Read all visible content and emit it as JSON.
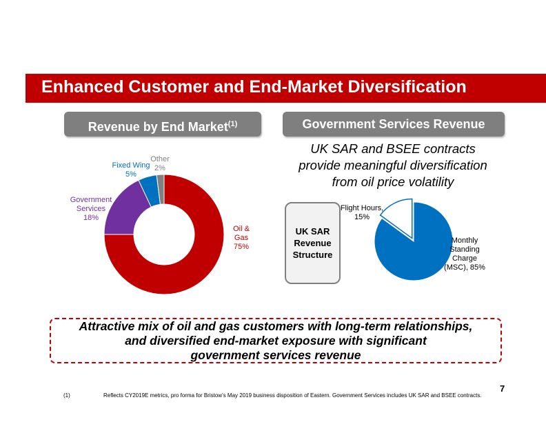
{
  "title": "Enhanced Customer and End-Market Diversification",
  "left_header": {
    "text": "Revenue by End Market",
    "sup": "(1)"
  },
  "right_header": "Government Services Revenue",
  "subtitle": [
    "UK SAR and BSEE contracts",
    "provide meaningful diversification",
    "from oil price volatility"
  ],
  "sar_box": [
    "UK SAR",
    "Revenue",
    "Structure"
  ],
  "callout": [
    "Attractive mix of oil and gas customers with long-term relationships,",
    "and diversified end-market exposure with significant",
    "government services revenue"
  ],
  "page_number": "7",
  "footnote": {
    "number": "(1)",
    "text": "Reflects CY2019E metrics, pro forma for Bristow’s May 2019 business disposition of Eastern. Government Services includes UK SAR and BSEE contracts."
  },
  "chart_data": [
    {
      "type": "pie",
      "variant": "donut",
      "title": "Revenue by End Market",
      "slices": [
        {
          "name": "Oil & Gas",
          "value": 75,
          "label": [
            "Oil &",
            "Gas",
            "75%"
          ],
          "color": "#c00000"
        },
        {
          "name": "Government Services",
          "value": 18,
          "label": [
            "Government",
            "Services",
            "18%"
          ],
          "color": "#7030a0"
        },
        {
          "name": "Fixed Wing",
          "value": 5,
          "label": [
            "Fixed Wing",
            "5%"
          ],
          "color": "#0070c0"
        },
        {
          "name": "Other",
          "value": 2,
          "label": [
            "Other",
            "2%"
          ],
          "color": "#808080"
        }
      ]
    },
    {
      "type": "pie",
      "title": "UK SAR Revenue Structure",
      "slices": [
        {
          "name": "Monthly Standing Charge (MSC)",
          "value": 85,
          "label": [
            "Monthly",
            "Standing",
            "Charge",
            "(MSC), 85%"
          ],
          "color": "#0070c0"
        },
        {
          "name": "Flight Hours",
          "value": 15,
          "label": [
            "Flight Hours,",
            "15%"
          ],
          "color": "#ffffff"
        }
      ]
    }
  ]
}
